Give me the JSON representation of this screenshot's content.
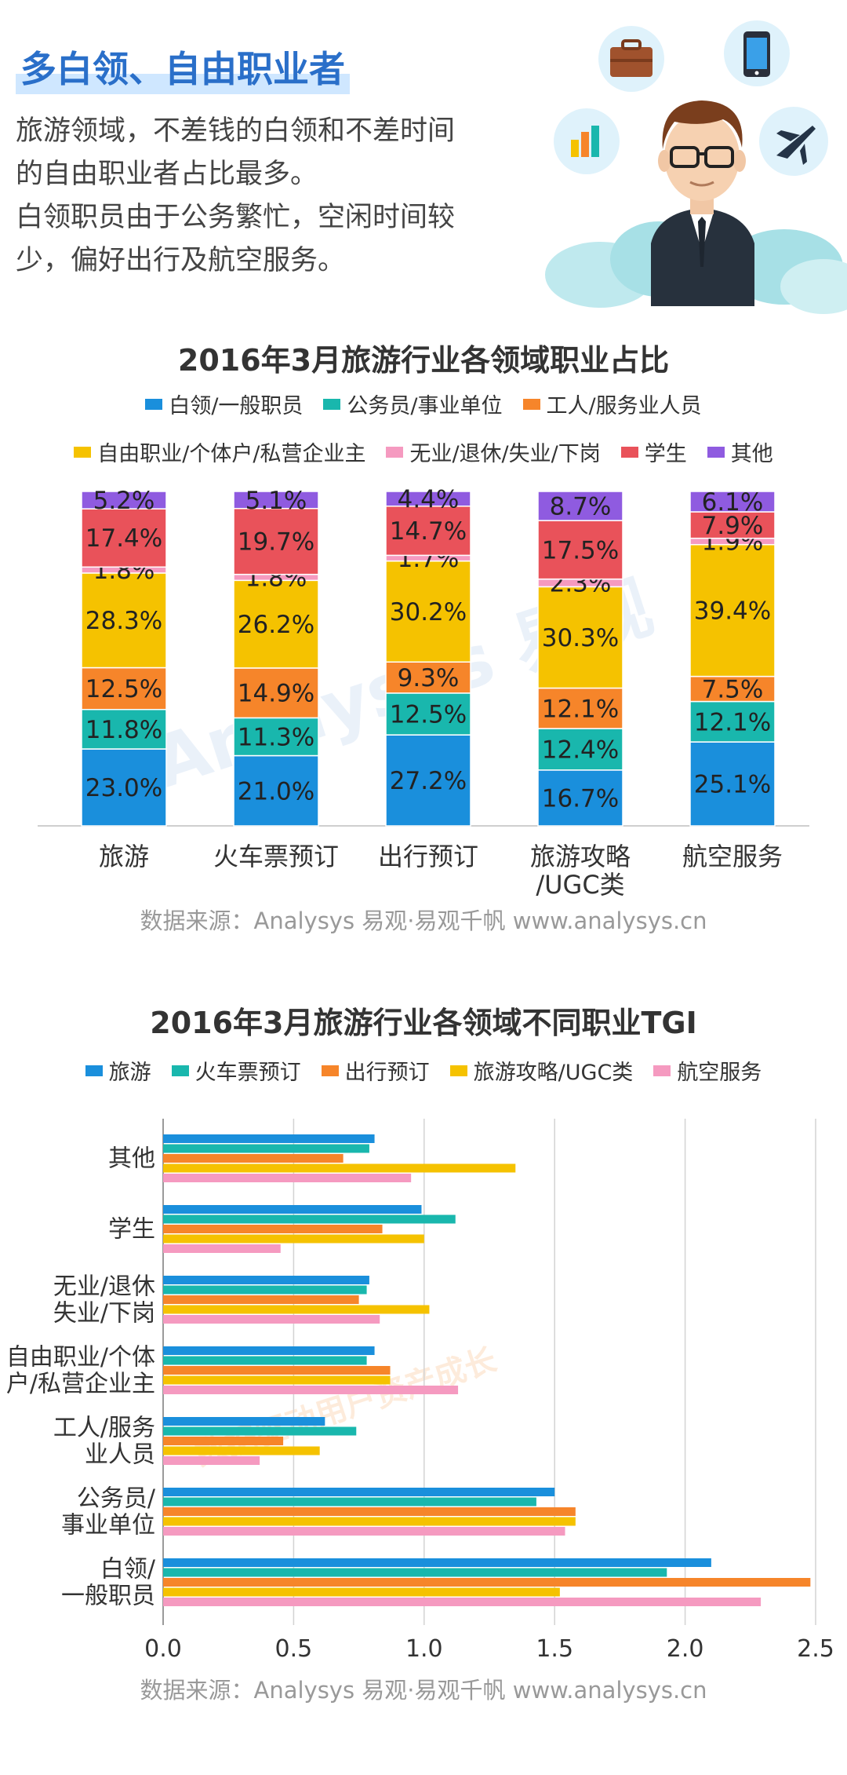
{
  "headline": "多白领、自由职业者",
  "intro": {
    "line1": "旅游领域，不差钱的白领和不差时间",
    "line2": "的自由职业者占比最多。",
    "line3": "白领职员由于公务繁忙，空闲时间较",
    "line4": "少，偏好出行及航空服务。"
  },
  "watermark": {
    "brand": "Analysys 易观",
    "slogan": "数据驱动用户资产成长"
  },
  "source_text": "数据来源：Analysys 易观·易观千帆 www.analysys.cn",
  "icons": [
    "briefcase-icon",
    "phone-icon",
    "bar-chart-icon",
    "airplane-icon",
    "businessman-avatar",
    "cloud-icon"
  ],
  "colors": {
    "blue": "#1a8fdc",
    "teal": "#19b7ad",
    "orange": "#f6852a",
    "yellow": "#f5c200",
    "pink": "#f59ac0",
    "red": "#e9525a",
    "purple": "#8f5be0",
    "title_blue": "#2a6fc9"
  },
  "chart_data": [
    {
      "type": "bar",
      "stacked": true,
      "percent": true,
      "title": "2016年3月旅游行业各领域职业占比",
      "categories": [
        "旅游",
        "火车票预订",
        "出行预订",
        "旅游攻略/UGC类",
        "航空服务"
      ],
      "series": [
        {
          "name": "白领/一般职员",
          "color": "#1a8fdc",
          "values": [
            23.0,
            21.0,
            27.2,
            16.7,
            25.1
          ],
          "labels": [
            "23.0%",
            "21.0%",
            "27.2%",
            "16.7%",
            "25.1%"
          ]
        },
        {
          "name": "公务员/事业单位",
          "color": "#19b7ad",
          "values": [
            11.8,
            11.3,
            12.5,
            12.4,
            12.1
          ],
          "labels": [
            "11.8%",
            "11.3%",
            "12.5%",
            "12.4%",
            "12.1%"
          ]
        },
        {
          "name": "工人/服务业人员",
          "color": "#f6852a",
          "values": [
            12.5,
            14.9,
            9.3,
            12.1,
            7.5
          ],
          "labels": [
            "12.5%",
            "14.9%",
            "9.3%",
            "12.1%",
            "7.5%"
          ]
        },
        {
          "name": "自由职业/个体户/私营企业主",
          "color": "#f5c200",
          "values": [
            28.3,
            26.2,
            30.2,
            30.3,
            39.4
          ],
          "labels": [
            "28.3%",
            "26.2%",
            "30.2%",
            "30.3%",
            "39.4%"
          ]
        },
        {
          "name": "无业/退休/失业/下岗",
          "color": "#f59ac0",
          "values": [
            1.8,
            1.8,
            1.7,
            2.3,
            1.9
          ],
          "labels": [
            "1.8%",
            "1.8%",
            "1.7%",
            "2.3%",
            "1.9%"
          ]
        },
        {
          "name": "学生",
          "color": "#e9525a",
          "values": [
            17.4,
            19.7,
            14.7,
            17.5,
            7.9
          ],
          "labels": [
            "17.4%",
            "19.7%",
            "14.7%",
            "17.5%",
            "7.9%"
          ]
        },
        {
          "name": "其他",
          "color": "#8f5be0",
          "values": [
            5.2,
            5.1,
            4.4,
            8.7,
            6.1
          ],
          "labels": [
            "5.2%",
            "5.1%",
            "4.4%",
            "8.7%",
            "6.1%"
          ]
        }
      ],
      "legend_rows": [
        [
          0,
          1,
          2
        ],
        [
          3,
          4,
          5,
          6
        ]
      ],
      "legend_position": "top",
      "ylim": [
        0,
        100
      ]
    },
    {
      "type": "bar",
      "orientation": "horizontal",
      "title": "2016年3月旅游行业各领域不同职业TGI",
      "categories": [
        [
          "其他"
        ],
        [
          "学生"
        ],
        [
          "无业/退休",
          "失业/下岗"
        ],
        [
          "自由职业/个体",
          "户/私营企业主"
        ],
        [
          "工人/服务",
          "业人员"
        ],
        [
          "公务员/",
          "事业单位"
        ],
        [
          "白领/",
          "一般职员"
        ]
      ],
      "series": [
        {
          "name": "旅游",
          "color": "#1a8fdc",
          "values": [
            0.81,
            0.99,
            0.79,
            0.81,
            0.62,
            1.5,
            2.1
          ]
        },
        {
          "name": "火车票预订",
          "color": "#19b7ad",
          "values": [
            0.79,
            1.12,
            0.78,
            0.78,
            0.74,
            1.43,
            1.93
          ]
        },
        {
          "name": "出行预订",
          "color": "#f6852a",
          "values": [
            0.69,
            0.84,
            0.75,
            0.87,
            0.46,
            1.58,
            2.48
          ]
        },
        {
          "name": "旅游攻略/UGC类",
          "color": "#f5c200",
          "values": [
            1.35,
            1.0,
            1.02,
            0.87,
            0.6,
            1.58,
            1.52
          ]
        },
        {
          "name": "航空服务",
          "color": "#f59ac0",
          "values": [
            0.95,
            0.45,
            0.83,
            1.13,
            0.37,
            1.54,
            2.29
          ]
        }
      ],
      "xlim": [
        0,
        2.5
      ],
      "xticks": [
        "0.0",
        "0.5",
        "1.0",
        "1.5",
        "2.0",
        "2.5"
      ],
      "grid": true,
      "legend_position": "top"
    }
  ]
}
